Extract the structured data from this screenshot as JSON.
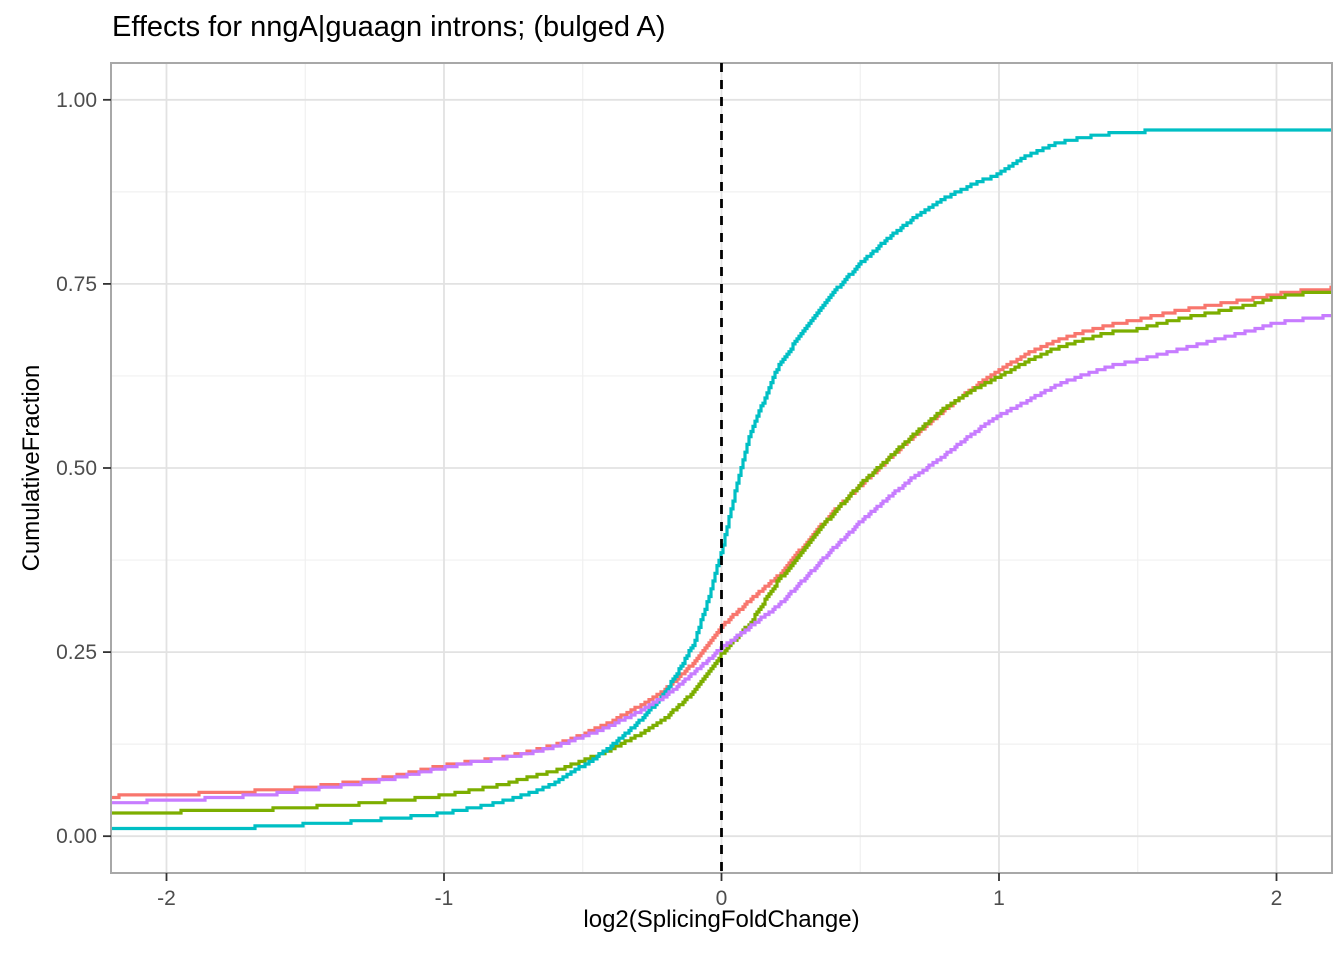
{
  "chart_data": {
    "type": "line",
    "subtype": "ecdf",
    "title": "Effects for nngA|guaagn introns; (bulged A)",
    "xlabel": "log2(SplicingFoldChange)",
    "ylabel": "CumulativeFraction",
    "legend": "none",
    "grid": "on",
    "x_axis": {
      "range": [
        -2.2,
        2.2
      ],
      "ticks": [
        -2,
        -1,
        0,
        1,
        2
      ],
      "tick_labels": [
        "-2",
        "-1",
        "0",
        "1",
        "2"
      ],
      "minor_ticks": [
        -1.5,
        -0.5,
        0.5,
        1.5
      ]
    },
    "y_axis": {
      "range": [
        -0.05,
        1.05
      ],
      "ticks": [
        0,
        0.25,
        0.5,
        0.75,
        1
      ],
      "tick_labels": [
        "0.00",
        "0.25",
        "0.50",
        "0.75",
        "1.00"
      ],
      "minor_ticks": [
        0.125,
        0.375,
        0.625,
        0.875
      ]
    },
    "reference_line": {
      "x": 0,
      "style": "dashed",
      "color": "#000000"
    },
    "colors": {
      "panel_background": "#ffffff",
      "panel_border": "#a8a8a8",
      "grid_major": "#e2e2e2",
      "grid_minor": "#f0f0f0",
      "tick_mark": "#333333",
      "tick_text": "#4d4d4d",
      "title_text": "#000000"
    },
    "series": [
      {
        "name": "salmon",
        "color": "#F8766D",
        "points": [
          [
            -2.2,
            0.054
          ],
          [
            -2.0,
            0.056
          ],
          [
            -1.8,
            0.059
          ],
          [
            -1.6,
            0.063
          ],
          [
            -1.5,
            0.066
          ],
          [
            -1.4,
            0.07
          ],
          [
            -1.3,
            0.075
          ],
          [
            -1.2,
            0.08
          ],
          [
            -1.1,
            0.088
          ],
          [
            -1.0,
            0.096
          ],
          [
            -0.9,
            0.101
          ],
          [
            -0.8,
            0.106
          ],
          [
            -0.7,
            0.114
          ],
          [
            -0.6,
            0.124
          ],
          [
            -0.5,
            0.138
          ],
          [
            -0.4,
            0.155
          ],
          [
            -0.3,
            0.176
          ],
          [
            -0.2,
            0.2
          ],
          [
            -0.1,
            0.236
          ],
          [
            -0.05,
            0.26
          ],
          [
            0,
            0.285
          ],
          [
            0.1,
            0.32
          ],
          [
            0.2,
            0.352
          ],
          [
            0.3,
            0.396
          ],
          [
            0.4,
            0.44
          ],
          [
            0.5,
            0.476
          ],
          [
            0.6,
            0.512
          ],
          [
            0.7,
            0.546
          ],
          [
            0.8,
            0.578
          ],
          [
            0.9,
            0.607
          ],
          [
            1.0,
            0.633
          ],
          [
            1.1,
            0.655
          ],
          [
            1.2,
            0.672
          ],
          [
            1.3,
            0.684
          ],
          [
            1.4,
            0.694
          ],
          [
            1.5,
            0.701
          ],
          [
            1.6,
            0.71
          ],
          [
            1.7,
            0.717
          ],
          [
            1.8,
            0.723
          ],
          [
            1.9,
            0.729
          ],
          [
            2.0,
            0.736
          ],
          [
            2.1,
            0.741
          ],
          [
            2.2,
            0.744
          ]
        ]
      },
      {
        "name": "olive",
        "color": "#7CAE00",
        "points": [
          [
            -2.2,
            0.031
          ],
          [
            -2.0,
            0.033
          ],
          [
            -1.8,
            0.034
          ],
          [
            -1.6,
            0.037
          ],
          [
            -1.5,
            0.039
          ],
          [
            -1.4,
            0.042
          ],
          [
            -1.3,
            0.044
          ],
          [
            -1.2,
            0.048
          ],
          [
            -1.1,
            0.051
          ],
          [
            -1.0,
            0.055
          ],
          [
            -0.9,
            0.062
          ],
          [
            -0.8,
            0.069
          ],
          [
            -0.7,
            0.079
          ],
          [
            -0.6,
            0.089
          ],
          [
            -0.5,
            0.102
          ],
          [
            -0.4,
            0.118
          ],
          [
            -0.3,
            0.137
          ],
          [
            -0.2,
            0.161
          ],
          [
            -0.1,
            0.196
          ],
          [
            -0.05,
            0.221
          ],
          [
            0,
            0.248
          ],
          [
            0.1,
            0.288
          ],
          [
            0.2,
            0.345
          ],
          [
            0.3,
            0.392
          ],
          [
            0.4,
            0.438
          ],
          [
            0.5,
            0.478
          ],
          [
            0.6,
            0.513
          ],
          [
            0.7,
            0.548
          ],
          [
            0.8,
            0.58
          ],
          [
            0.9,
            0.605
          ],
          [
            1.0,
            0.624
          ],
          [
            1.1,
            0.645
          ],
          [
            1.2,
            0.662
          ],
          [
            1.3,
            0.674
          ],
          [
            1.4,
            0.684
          ],
          [
            1.5,
            0.688
          ],
          [
            1.6,
            0.698
          ],
          [
            1.7,
            0.706
          ],
          [
            1.8,
            0.713
          ],
          [
            1.9,
            0.721
          ],
          [
            2.0,
            0.732
          ],
          [
            2.1,
            0.737
          ],
          [
            2.2,
            0.74
          ]
        ]
      },
      {
        "name": "teal",
        "color": "#00BFC4",
        "points": [
          [
            -2.2,
            0.01
          ],
          [
            -1.9,
            0.011
          ],
          [
            -1.7,
            0.012
          ],
          [
            -1.55,
            0.015
          ],
          [
            -1.4,
            0.018
          ],
          [
            -1.3,
            0.02
          ],
          [
            -1.2,
            0.024
          ],
          [
            -1.1,
            0.027
          ],
          [
            -1.0,
            0.031
          ],
          [
            -0.9,
            0.038
          ],
          [
            -0.8,
            0.046
          ],
          [
            -0.7,
            0.057
          ],
          [
            -0.6,
            0.072
          ],
          [
            -0.5,
            0.096
          ],
          [
            -0.45,
            0.108
          ],
          [
            -0.4,
            0.122
          ],
          [
            -0.35,
            0.138
          ],
          [
            -0.3,
            0.155
          ],
          [
            -0.25,
            0.175
          ],
          [
            -0.2,
            0.198
          ],
          [
            -0.15,
            0.228
          ],
          [
            -0.1,
            0.262
          ],
          [
            -0.05,
            0.32
          ],
          [
            0,
            0.388
          ],
          [
            0.05,
            0.47
          ],
          [
            0.1,
            0.545
          ],
          [
            0.15,
            0.59
          ],
          [
            0.2,
            0.635
          ],
          [
            0.25,
            0.663
          ],
          [
            0.3,
            0.69
          ],
          [
            0.35,
            0.714
          ],
          [
            0.4,
            0.737
          ],
          [
            0.45,
            0.758
          ],
          [
            0.5,
            0.778
          ],
          [
            0.6,
            0.812
          ],
          [
            0.7,
            0.842
          ],
          [
            0.8,
            0.866
          ],
          [
            0.9,
            0.884
          ],
          [
            1.0,
            0.9
          ],
          [
            1.1,
            0.924
          ],
          [
            1.2,
            0.94
          ],
          [
            1.3,
            0.949
          ],
          [
            1.4,
            0.954
          ],
          [
            1.5,
            0.957
          ],
          [
            1.7,
            0.959
          ],
          [
            2.0,
            0.96
          ],
          [
            2.2,
            0.96
          ]
        ]
      },
      {
        "name": "purple",
        "color": "#C77CFF",
        "points": [
          [
            -2.2,
            0.046
          ],
          [
            -2.0,
            0.048
          ],
          [
            -1.8,
            0.052
          ],
          [
            -1.6,
            0.058
          ],
          [
            -1.5,
            0.063
          ],
          [
            -1.4,
            0.067
          ],
          [
            -1.3,
            0.072
          ],
          [
            -1.2,
            0.077
          ],
          [
            -1.1,
            0.085
          ],
          [
            -1.0,
            0.093
          ],
          [
            -0.9,
            0.1
          ],
          [
            -0.8,
            0.105
          ],
          [
            -0.7,
            0.112
          ],
          [
            -0.6,
            0.122
          ],
          [
            -0.5,
            0.135
          ],
          [
            -0.4,
            0.15
          ],
          [
            -0.3,
            0.169
          ],
          [
            -0.2,
            0.191
          ],
          [
            -0.1,
            0.222
          ],
          [
            -0.05,
            0.239
          ],
          [
            0,
            0.256
          ],
          [
            0.1,
            0.284
          ],
          [
            0.2,
            0.312
          ],
          [
            0.3,
            0.35
          ],
          [
            0.4,
            0.39
          ],
          [
            0.5,
            0.427
          ],
          [
            0.6,
            0.46
          ],
          [
            0.7,
            0.49
          ],
          [
            0.8,
            0.516
          ],
          [
            0.9,
            0.546
          ],
          [
            1.0,
            0.571
          ],
          [
            1.1,
            0.591
          ],
          [
            1.2,
            0.611
          ],
          [
            1.3,
            0.626
          ],
          [
            1.4,
            0.638
          ],
          [
            1.5,
            0.646
          ],
          [
            1.6,
            0.656
          ],
          [
            1.7,
            0.666
          ],
          [
            1.8,
            0.676
          ],
          [
            1.9,
            0.686
          ],
          [
            2.0,
            0.697
          ],
          [
            2.1,
            0.702
          ],
          [
            2.2,
            0.707
          ]
        ]
      }
    ]
  }
}
